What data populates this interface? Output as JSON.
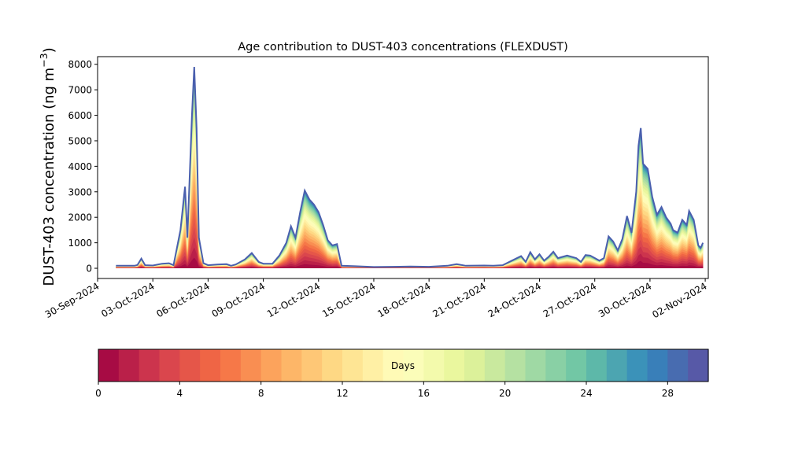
{
  "chart_data": {
    "type": "area",
    "stacked": true,
    "title": "Age contribution to DUST-403 concentrations (FLEXDUST)",
    "ylabel_main": "DUST-403 concentration (ng m",
    "ylabel_sup": "−3",
    "ylabel_close": ")",
    "xlabel": "",
    "x_start": "2024-09-30",
    "x_end": "2024-11-02",
    "xlim": [
      "2024-09-30T00:00",
      "2024-11-02T04:00"
    ],
    "ylim": [
      -400,
      8300
    ],
    "yticks": [
      0,
      1000,
      2000,
      3000,
      4000,
      5000,
      6000,
      7000,
      8000
    ],
    "xtick_labels": [
      "30-Sep-2024",
      "03-Oct-2024",
      "06-Oct-2024",
      "09-Oct-2024",
      "12-Oct-2024",
      "15-Oct-2024",
      "18-Oct-2024",
      "21-Oct-2024",
      "24-Oct-2024",
      "27-Oct-2024",
      "30-Oct-2024",
      "02-Nov-2024"
    ],
    "xtick_dates": [
      "2024-09-30",
      "2024-10-03",
      "2024-10-06",
      "2024-10-09",
      "2024-10-12",
      "2024-10-15",
      "2024-10-18",
      "2024-10-21",
      "2024-10-24",
      "2024-10-27",
      "2024-10-30",
      "2024-11-02"
    ],
    "total_series": [
      [
        "2024-10-01T00:00",
        100
      ],
      [
        "2024-10-02T00:00",
        100
      ],
      [
        "2024-10-02T04:00",
        130
      ],
      [
        "2024-10-02T09:00",
        380
      ],
      [
        "2024-10-02T14:00",
        120
      ],
      [
        "2024-10-03T00:00",
        110
      ],
      [
        "2024-10-03T12:00",
        180
      ],
      [
        "2024-10-03T21:00",
        200
      ],
      [
        "2024-10-04T03:00",
        120
      ],
      [
        "2024-10-04T12:00",
        1500
      ],
      [
        "2024-10-04T18:00",
        3200
      ],
      [
        "2024-10-04T21:00",
        1200
      ],
      [
        "2024-10-05T03:00",
        6000
      ],
      [
        "2024-10-05T06:00",
        7900
      ],
      [
        "2024-10-05T09:00",
        5500
      ],
      [
        "2024-10-05T12:00",
        1200
      ],
      [
        "2024-10-05T18:00",
        200
      ],
      [
        "2024-10-06T00:00",
        120
      ],
      [
        "2024-10-06T12:00",
        150
      ],
      [
        "2024-10-07T00:00",
        160
      ],
      [
        "2024-10-07T06:00",
        100
      ],
      [
        "2024-10-07T12:00",
        150
      ],
      [
        "2024-10-08T00:00",
        350
      ],
      [
        "2024-10-08T09:00",
        600
      ],
      [
        "2024-10-08T18:00",
        250
      ],
      [
        "2024-10-09T00:00",
        180
      ],
      [
        "2024-10-09T12:00",
        180
      ],
      [
        "2024-10-09T21:00",
        500
      ],
      [
        "2024-10-10T06:00",
        1000
      ],
      [
        "2024-10-10T12:00",
        1650
      ],
      [
        "2024-10-10T18:00",
        1200
      ],
      [
        "2024-10-11T00:00",
        2200
      ],
      [
        "2024-10-11T06:00",
        3050
      ],
      [
        "2024-10-11T12:00",
        2700
      ],
      [
        "2024-10-11T18:00",
        2500
      ],
      [
        "2024-10-12T00:00",
        2200
      ],
      [
        "2024-10-12T06:00",
        1700
      ],
      [
        "2024-10-12T12:00",
        1100
      ],
      [
        "2024-10-12T18:00",
        900
      ],
      [
        "2024-10-13T00:00",
        950
      ],
      [
        "2024-10-13T06:00",
        100
      ],
      [
        "2024-10-14T00:00",
        80
      ],
      [
        "2024-10-15T00:00",
        50
      ],
      [
        "2024-10-16T00:00",
        60
      ],
      [
        "2024-10-17T00:00",
        70
      ],
      [
        "2024-10-18T00:00",
        60
      ],
      [
        "2024-10-19T00:00",
        100
      ],
      [
        "2024-10-19T12:00",
        160
      ],
      [
        "2024-10-20T00:00",
        100
      ],
      [
        "2024-10-21T00:00",
        110
      ],
      [
        "2024-10-21T12:00",
        100
      ],
      [
        "2024-10-22T00:00",
        120
      ],
      [
        "2024-10-22T12:00",
        300
      ],
      [
        "2024-10-23T00:00",
        480
      ],
      [
        "2024-10-23T06:00",
        250
      ],
      [
        "2024-10-23T12:00",
        630
      ],
      [
        "2024-10-23T18:00",
        350
      ],
      [
        "2024-10-24T00:00",
        550
      ],
      [
        "2024-10-24T06:00",
        300
      ],
      [
        "2024-10-24T12:00",
        450
      ],
      [
        "2024-10-24T18:00",
        650
      ],
      [
        "2024-10-25T00:00",
        400
      ],
      [
        "2024-10-25T12:00",
        500
      ],
      [
        "2024-10-26T00:00",
        400
      ],
      [
        "2024-10-26T06:00",
        250
      ],
      [
        "2024-10-26T12:00",
        520
      ],
      [
        "2024-10-26T18:00",
        500
      ],
      [
        "2024-10-27T06:00",
        300
      ],
      [
        "2024-10-27T12:00",
        400
      ],
      [
        "2024-10-27T18:00",
        1250
      ],
      [
        "2024-10-28T00:00",
        1050
      ],
      [
        "2024-10-28T06:00",
        700
      ],
      [
        "2024-10-28T12:00",
        1150
      ],
      [
        "2024-10-28T18:00",
        2050
      ],
      [
        "2024-10-29T00:00",
        1400
      ],
      [
        "2024-10-29T06:00",
        3000
      ],
      [
        "2024-10-29T09:00",
        4800
      ],
      [
        "2024-10-29T12:00",
        5500
      ],
      [
        "2024-10-29T15:00",
        4100
      ],
      [
        "2024-10-29T21:00",
        3900
      ],
      [
        "2024-10-30T03:00",
        2800
      ],
      [
        "2024-10-30T09:00",
        2100
      ],
      [
        "2024-10-30T15:00",
        2400
      ],
      [
        "2024-10-30T21:00",
        2000
      ],
      [
        "2024-10-31T03:00",
        1750
      ],
      [
        "2024-10-31T06:00",
        1500
      ],
      [
        "2024-10-31T12:00",
        1400
      ],
      [
        "2024-10-31T18:00",
        1900
      ],
      [
        "2024-11-01T00:00",
        1700
      ],
      [
        "2024-11-01T03:00",
        2250
      ],
      [
        "2024-11-01T09:00",
        1900
      ],
      [
        "2024-11-01T15:00",
        900
      ],
      [
        "2024-11-01T18:00",
        800
      ],
      [
        "2024-11-01T21:00",
        1000
      ]
    ],
    "colorbar": {
      "label": "Days",
      "min": 0,
      "max": 30,
      "ticks": [
        0,
        4,
        8,
        12,
        16,
        20,
        24,
        28
      ],
      "bins": 30,
      "colormap_stops": [
        "#9e0142",
        "#d53e4f",
        "#f46d43",
        "#fdae61",
        "#fee08b",
        "#ffffbf",
        "#e6f598",
        "#abdda4",
        "#66c2a5",
        "#3288bd",
        "#5e4fa2"
      ]
    }
  }
}
